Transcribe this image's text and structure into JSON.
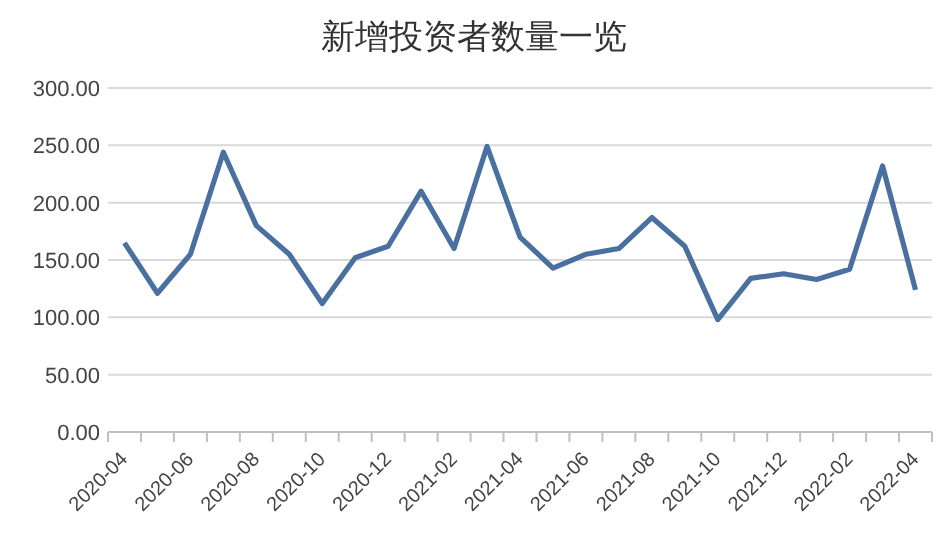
{
  "chart_data": {
    "type": "line",
    "title": "新增投资者数量一览",
    "categories": [
      "2020-04",
      null,
      "2020-06",
      null,
      "2020-08",
      null,
      "2020-10",
      null,
      "2020-12",
      null,
      "2021-02",
      null,
      "2021-04",
      null,
      "2021-06",
      null,
      "2021-08",
      null,
      "2021-10",
      null,
      "2021-12",
      null,
      "2022-02",
      null,
      "2022-04"
    ],
    "series": [
      {
        "color": "#4a70a0",
        "values": [
          165,
          121,
          155,
          244,
          180,
          155,
          112,
          152,
          162,
          210,
          160,
          249,
          170,
          143,
          155,
          160,
          187,
          162,
          98,
          134,
          138,
          133,
          142,
          232,
          124
        ]
      }
    ],
    "ylim": [
      0,
      300
    ],
    "yticks": [
      {
        "value": 0,
        "label": "0.00"
      },
      {
        "value": 50,
        "label": "50.00"
      },
      {
        "value": 100,
        "label": "100.00"
      },
      {
        "value": 150,
        "label": "150.00"
      },
      {
        "value": 200,
        "label": "200.00"
      },
      {
        "value": 250,
        "label": "250.00"
      },
      {
        "value": 300,
        "label": "300.00"
      }
    ],
    "grid": "y",
    "marker": "none",
    "line_style": "solid"
  }
}
